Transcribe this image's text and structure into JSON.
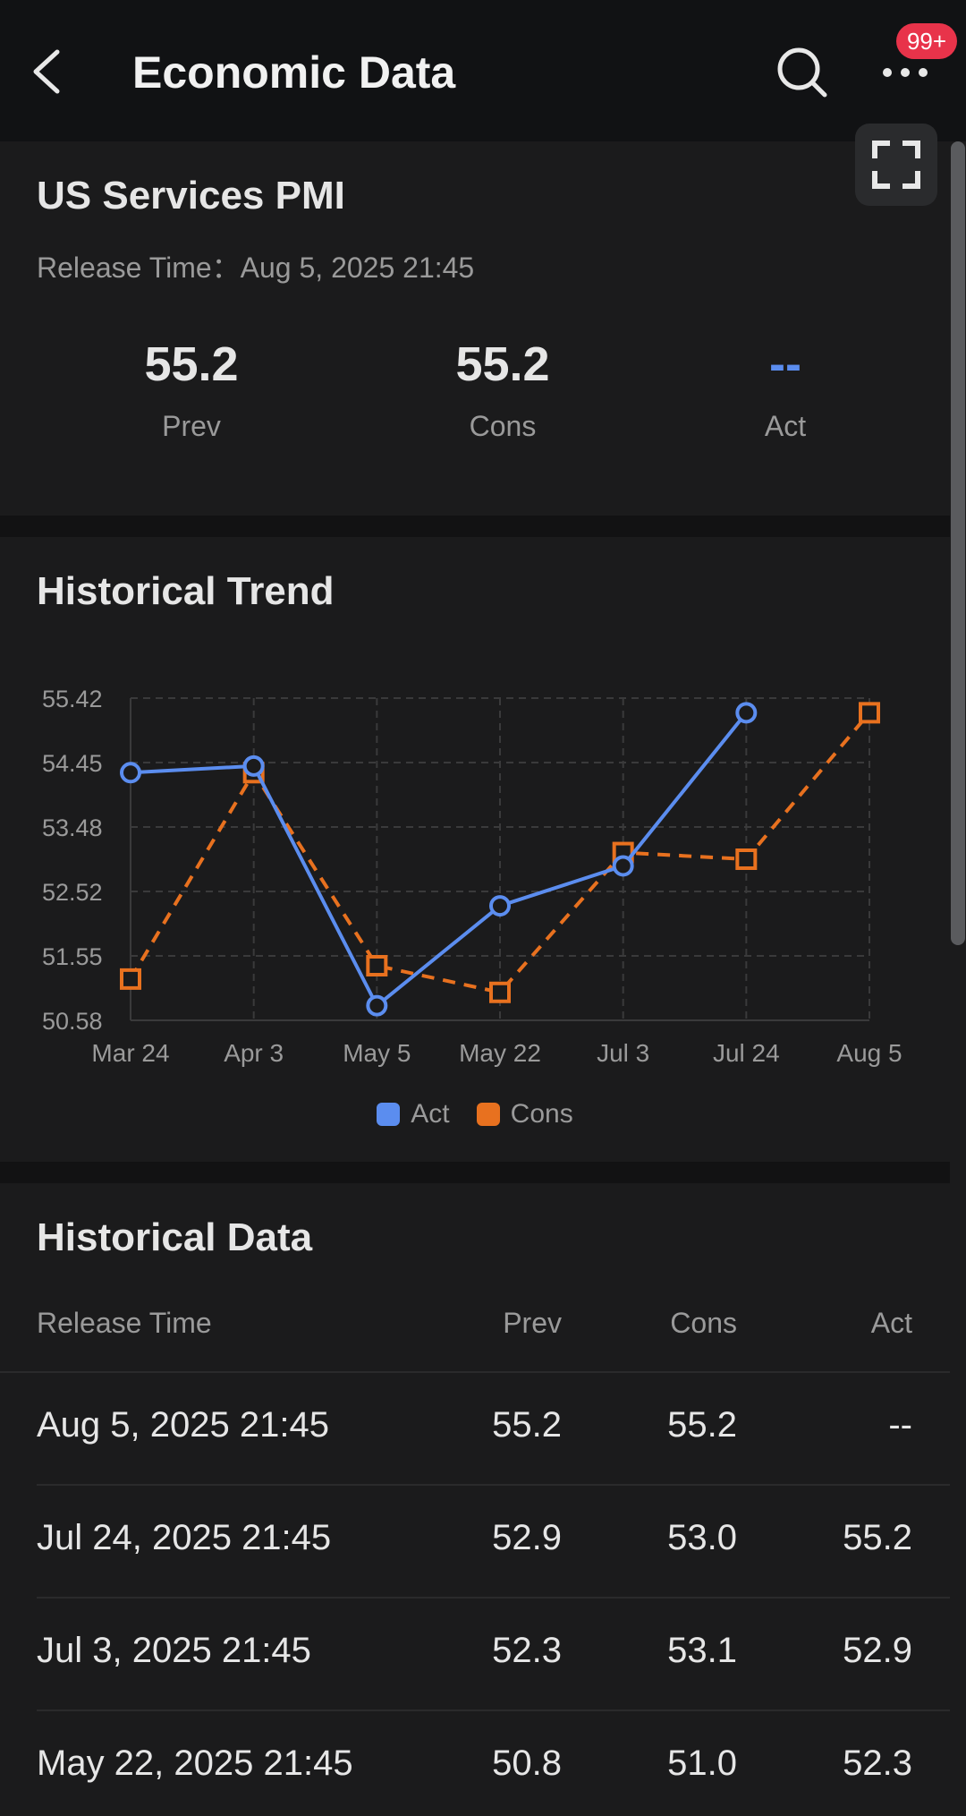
{
  "header": {
    "title": "Economic Data",
    "badge": "99+"
  },
  "indicator": {
    "name": "US Services PMI",
    "release_label": "Release Time：",
    "release_time": "Aug 5, 2025 21:45",
    "stats": [
      {
        "value": "55.2",
        "label": "Prev"
      },
      {
        "value": "55.2",
        "label": "Cons"
      },
      {
        "value": "--",
        "label": "Act"
      }
    ]
  },
  "trend": {
    "title": "Historical Trend"
  },
  "chart_data": {
    "type": "line",
    "x": [
      "Mar 24",
      "Apr 3",
      "May 5",
      "May 22",
      "Jul 3",
      "Jul 24",
      "Aug 5"
    ],
    "yticks": [
      "55.42",
      "54.45",
      "53.48",
      "52.52",
      "51.55",
      "50.58"
    ],
    "ylim": [
      50.58,
      55.42
    ],
    "grid": true,
    "legend": "bottom",
    "series": [
      {
        "name": "Act",
        "color": "#5b8def",
        "style": "solid",
        "marker": "circle",
        "values": [
          54.3,
          54.4,
          50.8,
          52.3,
          52.9,
          55.2,
          null
        ]
      },
      {
        "name": "Cons",
        "color": "#e8711f",
        "style": "dashed",
        "marker": "square",
        "values": [
          51.2,
          54.3,
          51.4,
          51.0,
          53.1,
          53.0,
          55.2
        ]
      }
    ]
  },
  "history": {
    "title": "Historical Data",
    "columns": [
      "Release Time",
      "Prev",
      "Cons",
      "Act"
    ],
    "rows": [
      [
        "Aug 5, 2025 21:45",
        "55.2",
        "55.2",
        "--"
      ],
      [
        "Jul 24, 2025 21:45",
        "52.9",
        "53.0",
        "55.2"
      ],
      [
        "Jul 3, 2025 21:45",
        "52.3",
        "53.1",
        "52.9"
      ],
      [
        "May 22, 2025 21:45",
        "50.8",
        "51.0",
        "52.3"
      ]
    ]
  }
}
